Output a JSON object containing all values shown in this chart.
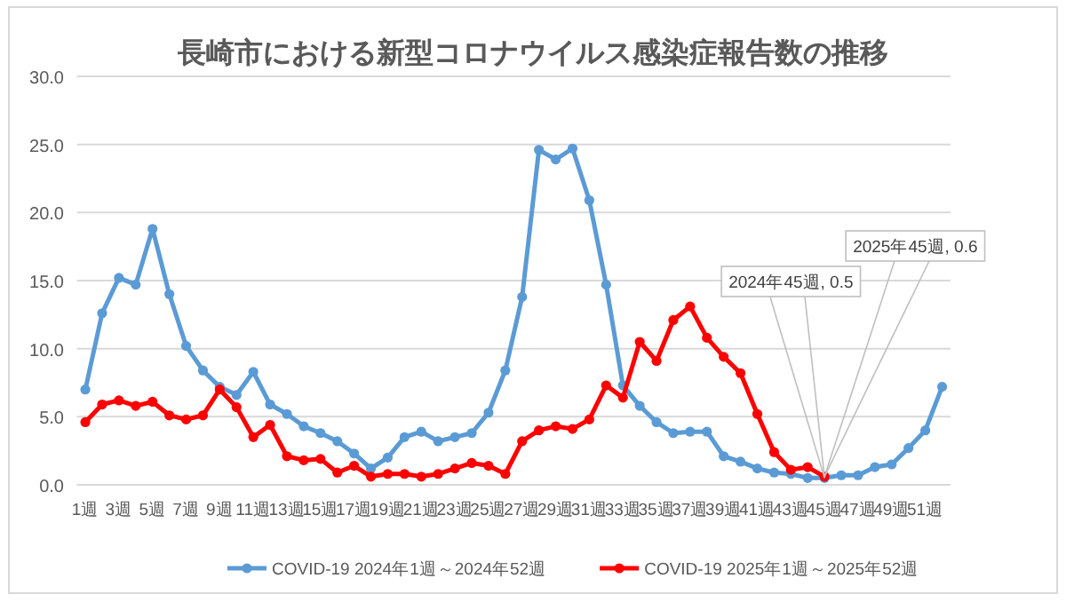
{
  "chart_data": {
    "type": "line",
    "title": "長崎市における新型コロナウイルス感染症報告数の推移",
    "categories": [
      "1週",
      null,
      "3週",
      null,
      "5週",
      null,
      "7週",
      null,
      "9週",
      null,
      "11週",
      null,
      "13週",
      null,
      "15週",
      null,
      "17週",
      null,
      "19週",
      null,
      "21週",
      null,
      "23週",
      null,
      "25週",
      null,
      "27週",
      null,
      "29週",
      null,
      "31週",
      null,
      "33週",
      null,
      "35週",
      null,
      "37週",
      null,
      "39週",
      null,
      "41週",
      null,
      "43週",
      null,
      "45週",
      null,
      "47週",
      null,
      "49週",
      null,
      "51週",
      null
    ],
    "series": [
      {
        "name": "COVID-19 2024年1週～2024年52週",
        "color": "#5b9bd5",
        "values": [
          7.0,
          12.6,
          15.2,
          14.7,
          18.8,
          14.0,
          10.2,
          8.4,
          7.2,
          6.6,
          8.3,
          5.9,
          5.2,
          4.3,
          3.8,
          3.2,
          2.3,
          1.2,
          2.0,
          3.5,
          3.9,
          3.2,
          3.5,
          3.8,
          5.3,
          8.4,
          13.8,
          24.6,
          23.9,
          24.7,
          20.9,
          14.7,
          7.3,
          5.8,
          4.6,
          3.8,
          3.9,
          3.9,
          2.1,
          1.7,
          1.2,
          0.9,
          0.8,
          0.5,
          0.5,
          0.7,
          0.7,
          1.3,
          1.5,
          2.7,
          4.0,
          7.2
        ]
      },
      {
        "name": "COVID-19 2025年1週～2025年52週",
        "color": "#ff0000",
        "values": [
          4.6,
          5.9,
          6.2,
          5.8,
          6.1,
          5.1,
          4.8,
          5.1,
          7.0,
          5.7,
          3.5,
          4.4,
          2.1,
          1.8,
          1.9,
          0.9,
          1.4,
          0.6,
          0.8,
          0.8,
          0.6,
          0.8,
          1.2,
          1.6,
          1.4,
          0.8,
          3.2,
          4.0,
          4.3,
          4.1,
          4.8,
          7.3,
          6.4,
          10.5,
          9.1,
          12.1,
          13.1,
          10.8,
          9.4,
          8.2,
          5.2,
          2.4,
          1.1,
          1.3,
          0.6,
          null,
          null,
          null,
          null,
          null,
          null,
          null
        ]
      }
    ],
    "ylim": [
      0,
      30
    ],
    "yticks": [
      {
        "value": 0,
        "label": "0.0"
      },
      {
        "value": 5,
        "label": "5.0"
      },
      {
        "value": 10,
        "label": "10.0"
      },
      {
        "value": 15,
        "label": "15.0"
      },
      {
        "value": 20,
        "label": "20.0"
      },
      {
        "value": 25,
        "label": "25.0"
      },
      {
        "value": 30,
        "label": "30.0"
      }
    ],
    "annotations": [
      {
        "text": "2024年45週, 0.5",
        "x": "45週",
        "y": 0.5
      },
      {
        "text": "2025年45週, 0.6",
        "x": "45週",
        "y": 0.6
      }
    ],
    "grid": "y",
    "legend": "bottom",
    "marker": "circle",
    "line_style": "solid"
  }
}
